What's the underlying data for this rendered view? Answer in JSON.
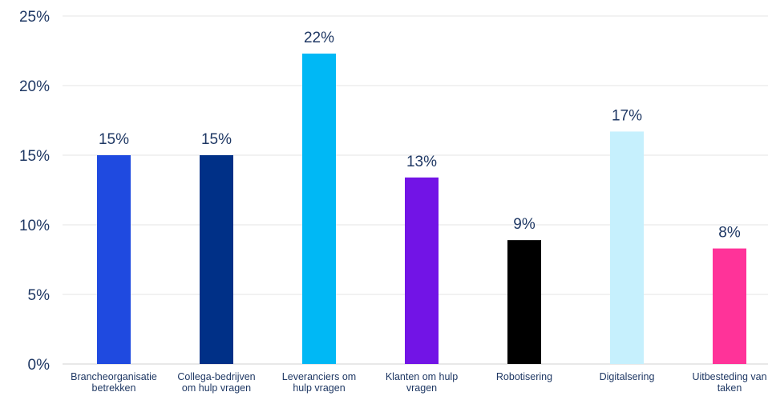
{
  "chart_data": {
    "type": "bar",
    "categories": [
      [
        "Brancheorganisatie",
        "betrekken"
      ],
      [
        "Collega-bedrijven",
        "om hulp vragen"
      ],
      [
        "Leveranciers om",
        "hulp vragen"
      ],
      [
        "Klanten om hulp",
        "vragen"
      ],
      [
        "Robotisering"
      ],
      [
        "Digitalsering"
      ],
      [
        "Uitbesteding van",
        "taken"
      ]
    ],
    "values": [
      15,
      15,
      22.3,
      13.4,
      8.9,
      16.7,
      8.3
    ],
    "data_labels": [
      "15%",
      "15%",
      "22%",
      "13%",
      "9%",
      "17%",
      "8%"
    ],
    "colors": [
      "#1f4ae0",
      "#003087",
      "#00b8f5",
      "#7214e6",
      "#000000",
      "#c6f0fd",
      "#ff3399"
    ],
    "ylim": [
      0,
      25
    ],
    "y_ticks": [
      {
        "value": 0,
        "label": "0%"
      },
      {
        "value": 5,
        "label": "5%"
      },
      {
        "value": 10,
        "label": "10%"
      },
      {
        "value": 15,
        "label": "15%"
      },
      {
        "value": 20,
        "label": "20%"
      },
      {
        "value": 25,
        "label": "25%"
      }
    ],
    "grid": true,
    "title": "",
    "xlabel": "",
    "ylabel": ""
  }
}
